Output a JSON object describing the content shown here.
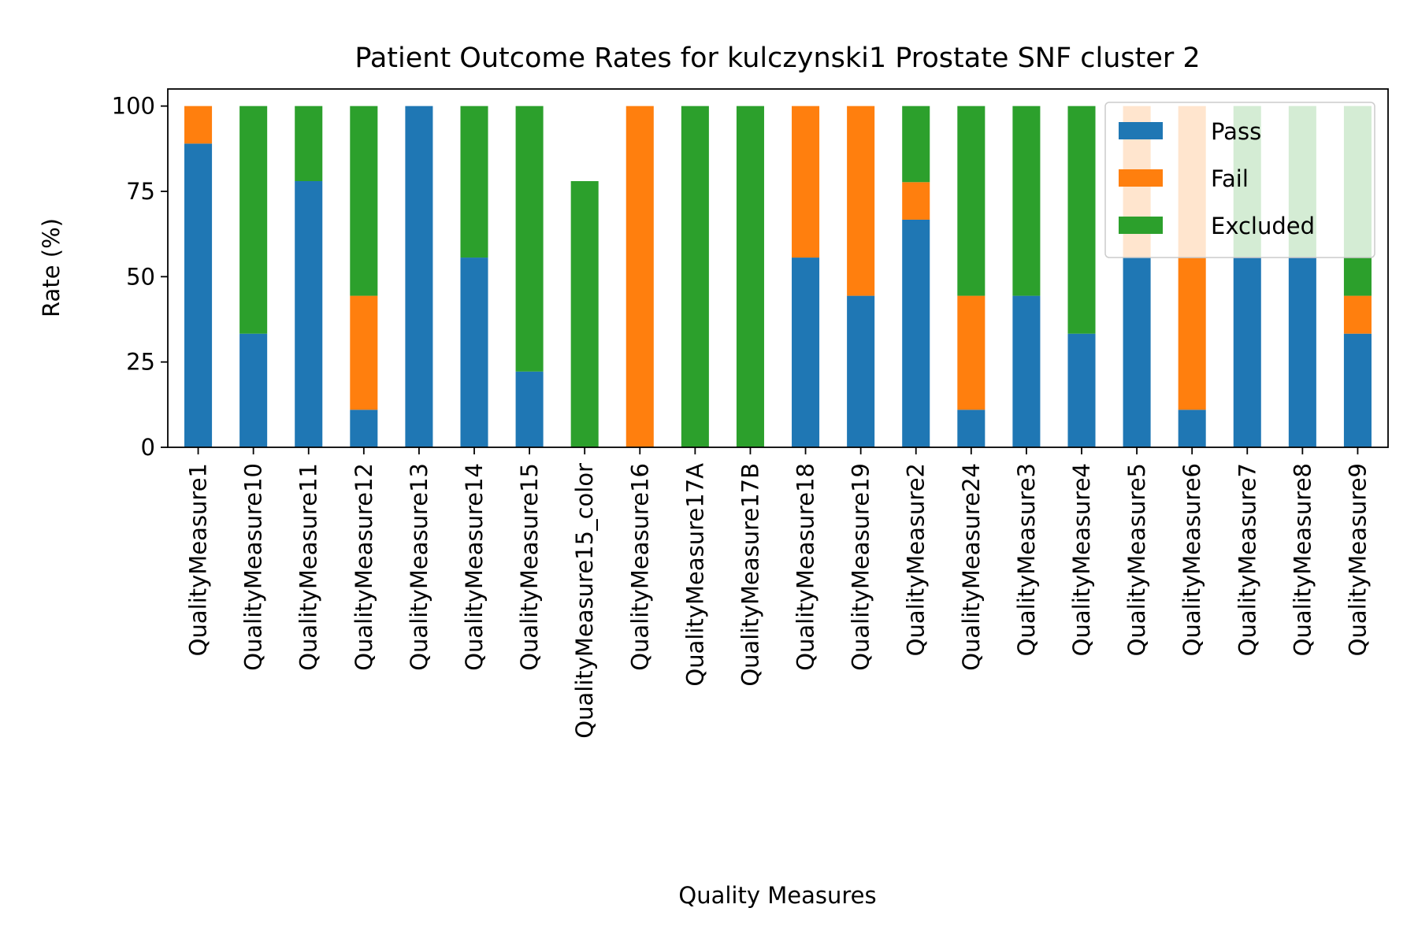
{
  "chart_data": {
    "type": "bar",
    "stacked": true,
    "title": "Patient Outcome Rates for kulczynski1 Prostate SNF cluster 2",
    "xlabel": "Quality Measures",
    "ylabel": "Rate (%)",
    "ylim": [
      0,
      105
    ],
    "yticks": [
      0,
      25,
      50,
      75,
      100
    ],
    "grid": false,
    "legend": "top-right",
    "categories": [
      "QualityMeasure1",
      "QualityMeasure10",
      "QualityMeasure11",
      "QualityMeasure12",
      "QualityMeasure13",
      "QualityMeasure14",
      "QualityMeasure15",
      "QualityMeasure15_color",
      "QualityMeasure16",
      "QualityMeasure17A",
      "QualityMeasure17B",
      "QualityMeasure18",
      "QualityMeasure19",
      "QualityMeasure2",
      "QualityMeasure24",
      "QualityMeasure3",
      "QualityMeasure4",
      "QualityMeasure5",
      "QualityMeasure6",
      "QualityMeasure7",
      "QualityMeasure8",
      "QualityMeasure9"
    ],
    "series": [
      {
        "name": "Pass",
        "color": "#1f77b4",
        "values": [
          89,
          33.3,
          78,
          11,
          100,
          55.6,
          22.2,
          0,
          0,
          0,
          0,
          55.6,
          44.4,
          66.7,
          11,
          44.4,
          33.3,
          55.6,
          11,
          55.6,
          55.6,
          33.3
        ]
      },
      {
        "name": "Fail",
        "color": "#ff7f0e",
        "values": [
          11,
          0,
          0,
          33.4,
          0,
          0,
          0,
          0,
          100,
          0,
          0,
          44.4,
          55.6,
          11,
          33.4,
          0,
          0,
          44.4,
          89,
          0,
          0,
          11.1
        ]
      },
      {
        "name": "Excluded",
        "color": "#2ca02c",
        "values": [
          0,
          66.7,
          22,
          55.6,
          0,
          44.4,
          77.8,
          78,
          0,
          100,
          100,
          0,
          0,
          22.3,
          55.6,
          55.6,
          66.7,
          0,
          0,
          44.4,
          44.4,
          55.6
        ]
      }
    ]
  }
}
